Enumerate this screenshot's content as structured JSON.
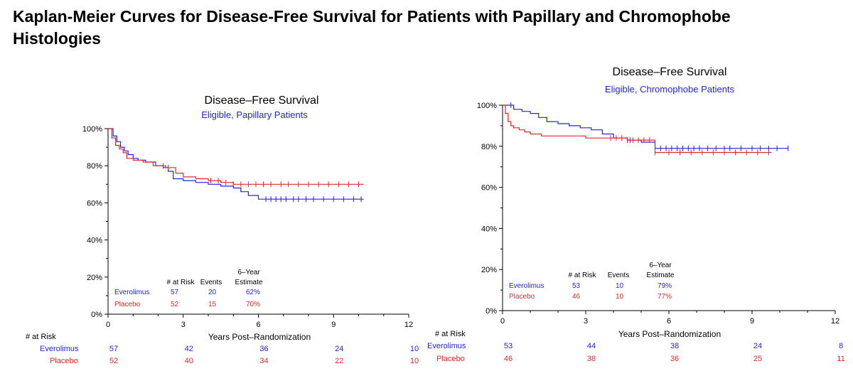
{
  "slide_title": "Kaplan-Meier Curves for Disease-Free Survival for Patients with Papillary and Chromophobe Histologies",
  "colors": {
    "everolimus": "#2323e0",
    "placebo": "#e02a2a",
    "axis": "#000000"
  },
  "chart_data": [
    {
      "type": "line",
      "title": "Disease–Free  Survival",
      "subtitle": "Eligible,  Papillary  Patients",
      "xlabel": "Years  Post–Randomization",
      "ylabel": "",
      "xlim": [
        0,
        12
      ],
      "ylim": [
        0,
        100
      ],
      "x_ticks": [
        "0",
        "3",
        "6",
        "9",
        "12"
      ],
      "y_ticks": [
        "0%",
        "20%",
        "40%",
        "60%",
        "80%",
        "100%"
      ],
      "grid": false,
      "series": [
        {
          "name": "Everolimus",
          "color": "#2323e0",
          "x": [
            0,
            0.2,
            0.35,
            0.5,
            0.65,
            0.8,
            1.0,
            1.2,
            1.5,
            1.9,
            2.2,
            2.4,
            2.6,
            3.0,
            3.5,
            4.0,
            4.5,
            5.0,
            5.3,
            5.6,
            6.0,
            10.2
          ],
          "y": [
            100,
            96,
            93,
            90,
            88,
            86,
            84,
            83,
            82,
            80,
            79,
            77,
            73,
            72,
            71,
            70,
            69,
            68,
            66,
            64,
            62,
            62
          ],
          "censor_x": [
            6.3,
            6.5,
            6.7,
            6.9,
            7.1,
            7.4,
            7.6,
            7.9,
            8.2,
            8.6,
            9.0,
            9.4,
            9.8,
            10.1
          ]
        },
        {
          "name": "Placebo",
          "color": "#e02a2a",
          "x": [
            0,
            0.15,
            0.3,
            0.45,
            0.6,
            0.75,
            1.0,
            1.4,
            1.8,
            2.3,
            2.7,
            3.0,
            3.5,
            4.0,
            4.5,
            5.0,
            10.2
          ],
          "y": [
            100,
            95,
            91,
            89,
            87,
            84,
            83,
            82,
            80,
            79,
            76,
            74,
            73,
            72,
            71,
            70,
            70
          ],
          "censor_x": [
            2.2,
            2.4,
            4.1,
            4.4,
            4.7,
            5.0,
            5.3,
            5.6,
            5.9,
            6.2,
            6.5,
            6.9,
            7.2,
            7.6,
            8.0,
            8.4,
            8.8,
            9.2,
            9.6,
            10.0
          ]
        }
      ],
      "summary_table": {
        "headers": [
          "# at Risk",
          "Events",
          "6–Year\nEstimate"
        ],
        "rows": [
          {
            "name": "Everolimus",
            "color": "#2323e0",
            "at_risk": "57",
            "events": "20",
            "estimate": "62%"
          },
          {
            "name": "Placebo",
            "color": "#e02a2a",
            "at_risk": "52",
            "events": "15",
            "estimate": "70%"
          }
        ]
      },
      "risk_table": {
        "header": "# at Risk",
        "rows": [
          {
            "name": "Everolimus",
            "color": "#2323e0",
            "values": [
              "57",
              "42",
              "36",
              "24",
              "10"
            ]
          },
          {
            "name": "Placebo",
            "color": "#e02a2a",
            "values": [
              "52",
              "40",
              "34",
              "22",
              "10"
            ]
          }
        ]
      }
    },
    {
      "type": "line",
      "title": "Disease–Free  Survival",
      "subtitle": "Eligible,  Chromophobe  Patients",
      "xlabel": "Years  Post–Randomization",
      "ylabel": "",
      "xlim": [
        0,
        12
      ],
      "ylim": [
        0,
        100
      ],
      "x_ticks": [
        "0",
        "3",
        "6",
        "9",
        "12"
      ],
      "y_ticks": [
        "0%",
        "20%",
        "40%",
        "60%",
        "80%",
        "100%"
      ],
      "grid": false,
      "series": [
        {
          "name": "Everolimus",
          "color": "#2323e0",
          "x": [
            0,
            0.4,
            0.7,
            1.0,
            1.3,
            1.6,
            2.0,
            2.4,
            2.8,
            3.2,
            3.6,
            4.0,
            4.5,
            5.0,
            5.5,
            10.3
          ],
          "y": [
            100,
            98,
            97,
            96,
            94,
            92,
            91,
            90,
            89,
            88,
            86,
            84,
            83,
            82,
            79,
            79
          ],
          "censor_x": [
            0.3,
            4.6,
            5.7,
            5.9,
            6.1,
            6.3,
            6.5,
            6.7,
            6.9,
            7.1,
            7.4,
            7.7,
            8.0,
            8.2,
            8.6,
            9.0,
            9.3,
            9.6,
            9.9,
            10.3
          ]
        },
        {
          "name": "Placebo",
          "color": "#e02a2a",
          "x": [
            0,
            0.1,
            0.2,
            0.3,
            0.4,
            0.6,
            0.8,
            1.0,
            1.4,
            3.0,
            4.5,
            5.5,
            9.7
          ],
          "y": [
            100,
            96,
            92,
            90,
            89,
            88,
            87,
            86,
            85,
            84,
            83,
            77,
            77
          ],
          "censor_x": [
            3.9,
            4.1,
            4.3,
            4.5,
            4.7,
            4.9,
            5.1,
            5.3,
            5.5,
            6.0,
            6.4,
            6.8,
            7.2,
            7.6,
            8.0,
            8.4,
            8.8,
            9.2,
            9.6
          ]
        }
      ],
      "summary_table": {
        "headers": [
          "# at Risk",
          "Events",
          "6–Year\nEstimate"
        ],
        "rows": [
          {
            "name": "Everolimus",
            "color": "#2323e0",
            "at_risk": "53",
            "events": "10",
            "estimate": "79%"
          },
          {
            "name": "Placebo",
            "color": "#e02a2a",
            "at_risk": "46",
            "events": "10",
            "estimate": "77%"
          }
        ]
      },
      "risk_table": {
        "header": "# at Risk",
        "rows": [
          {
            "name": "Everolimus",
            "color": "#2323e0",
            "values": [
              "53",
              "44",
              "38",
              "24",
              "8"
            ]
          },
          {
            "name": "Placebo",
            "color": "#e02a2a",
            "values": [
              "46",
              "38",
              "36",
              "25",
              "11"
            ]
          }
        ]
      }
    }
  ]
}
